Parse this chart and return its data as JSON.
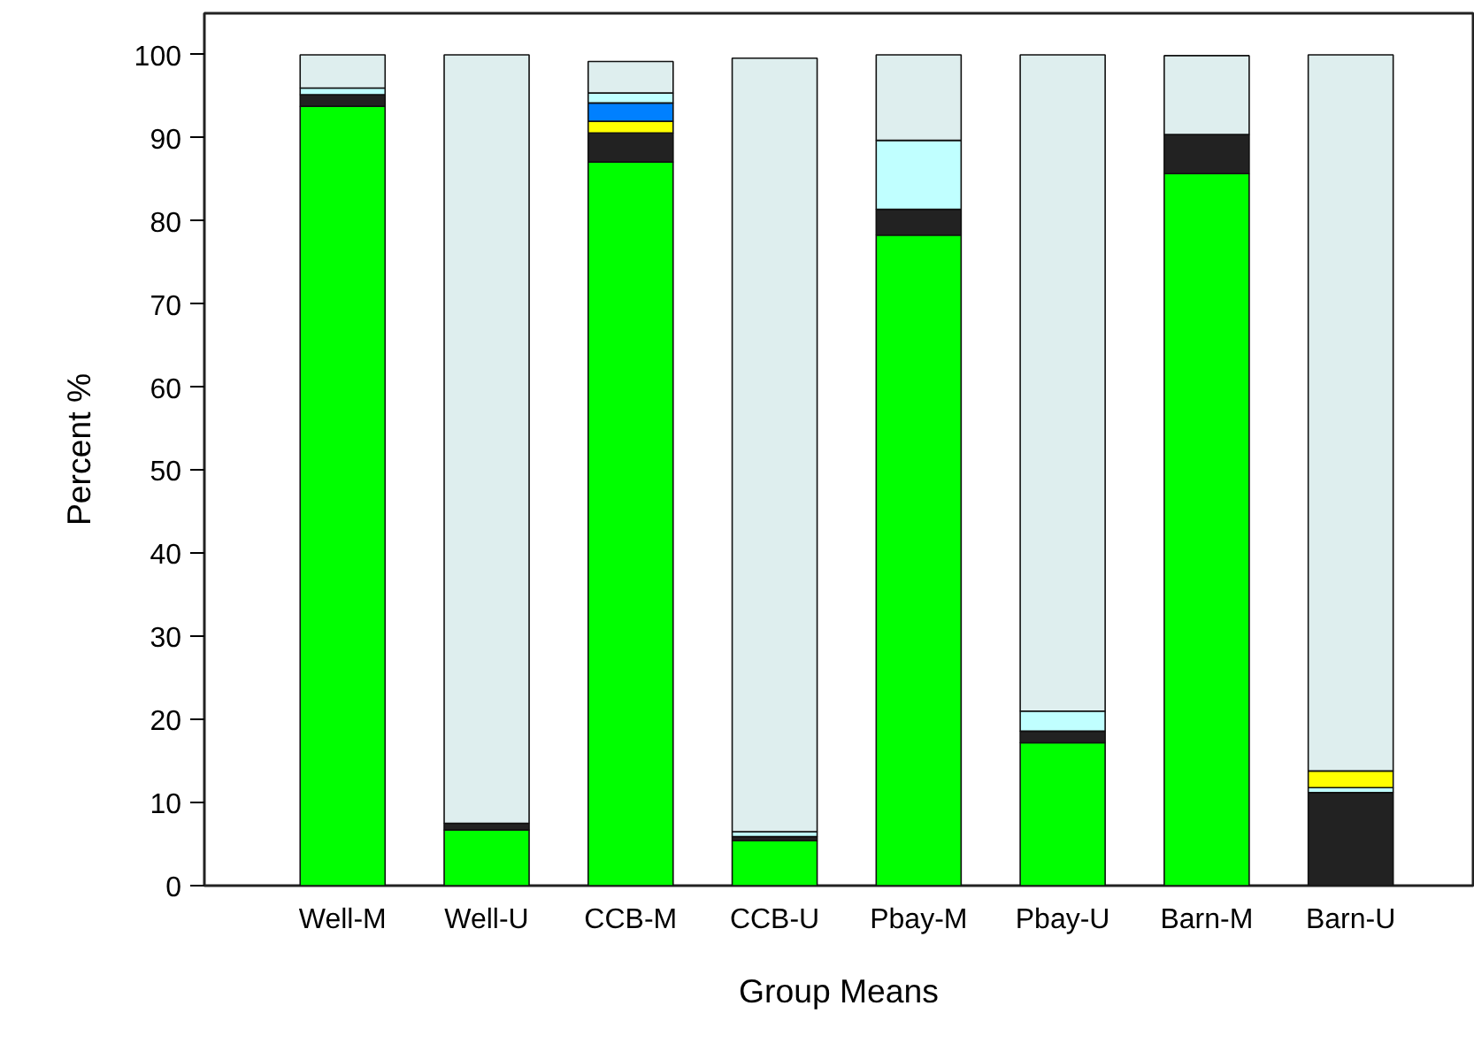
{
  "chart_data": {
    "type": "bar",
    "stacked": true,
    "xlabel": "Group Means",
    "ylabel": "Percent %",
    "categories": [
      "Well-M",
      "Well-U",
      "CCB-M",
      "CCB-U",
      "Pbay-M",
      "Pbay-U",
      "Barn-M",
      "Barn-U"
    ],
    "series": [
      {
        "color": "#00ff00",
        "values": [
          93.8,
          6.7,
          87.1,
          5.4,
          78.3,
          17.2,
          85.7,
          0
        ]
      },
      {
        "color": "#222222",
        "values": [
          1.4,
          0.8,
          3.5,
          0.5,
          3.1,
          1.4,
          4.7,
          11.2
        ]
      },
      {
        "color": "#c0ffff",
        "values": [
          null,
          null,
          null,
          null,
          null,
          null,
          null,
          0.6
        ]
      },
      {
        "color": "#ffff00",
        "values": [
          null,
          null,
          1.4,
          null,
          null,
          null,
          null,
          2.0
        ]
      },
      {
        "color": "#0080ff",
        "values": [
          null,
          null,
          2.2,
          null,
          null,
          null,
          null,
          null
        ]
      },
      {
        "color": "#c0ffff",
        "values": [
          0.8,
          null,
          1.2,
          0.6,
          8.3,
          2.4,
          null,
          null
        ]
      },
      {
        "color": "#deeeee",
        "values": [
          4.0,
          92.5,
          3.8,
          93.1,
          10.3,
          79.0,
          9.5,
          86.2
        ]
      }
    ],
    "ylim": [
      0,
      105
    ],
    "yticks": [
      0,
      10,
      20,
      30,
      40,
      50,
      60,
      70,
      80,
      90,
      100
    ],
    "grid": false
  }
}
